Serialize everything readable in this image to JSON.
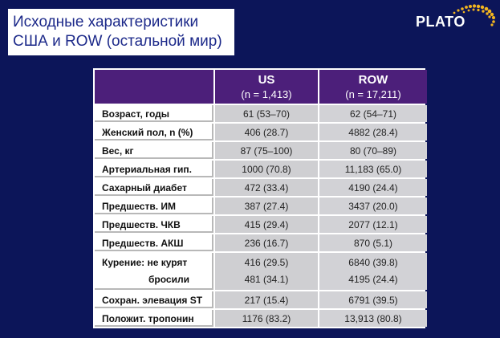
{
  "title": {
    "line1": "Исходные характеристики",
    "line2": "США и ROW (остальной мир)"
  },
  "brand": {
    "logo_text": "PLATO",
    "logo_icon": "dots-arc-icon"
  },
  "colors": {
    "background": "#0c1559",
    "header_purple": "#4c1f7a",
    "cell_gray": "#d2d2d6",
    "title_text": "#1d2a8a"
  },
  "table": {
    "columns": [
      {
        "name": "US",
        "n": "(n = 1,413)"
      },
      {
        "name": "ROW",
        "n": "(n = 17,211)"
      }
    ],
    "rows": [
      {
        "label": "Возраст, годы",
        "us": "61 (53–70)",
        "row": "62 (54–71)"
      },
      {
        "label": "Женский пол, n (%)",
        "us": "406 (28.7)",
        "row": "4882 (28.4)"
      },
      {
        "label": "Вес, кг",
        "us": "87 (75–100)",
        "row": "80 (70–89)"
      },
      {
        "label": "Артериальная гип.",
        "us": "1000 (70.8)",
        "row": "11,183 (65.0)"
      },
      {
        "label": "Сахарный диабет",
        "us": "472 (33.4)",
        "row": "4190 (24.4)"
      },
      {
        "label": "Предшеств. ИМ",
        "us": "387 (27.4)",
        "row": "3437 (20.0)"
      },
      {
        "label": "Предшеств. ЧКВ",
        "us": "415 (29.4)",
        "row": "2077 (12.1)"
      },
      {
        "label": "Предшеств. АКШ",
        "us": "236 (16.7)",
        "row": "870 (5.1)"
      }
    ],
    "smoking": {
      "label1": "Курение: не курят",
      "label2": "бросили",
      "us1": "416 (29.5)",
      "us2": "481 (34.1)",
      "row1": "6840 (39.8)",
      "row2": "4195 (24.4)"
    },
    "rows_tail": [
      {
        "label": "Сохран. элевация ST",
        "us": "217 (15.4)",
        "row": "6791 (39.5)"
      },
      {
        "label": "Положит. тропонин",
        "us": "1176 (83.2)",
        "row": "13,913 (80.8)"
      }
    ]
  }
}
